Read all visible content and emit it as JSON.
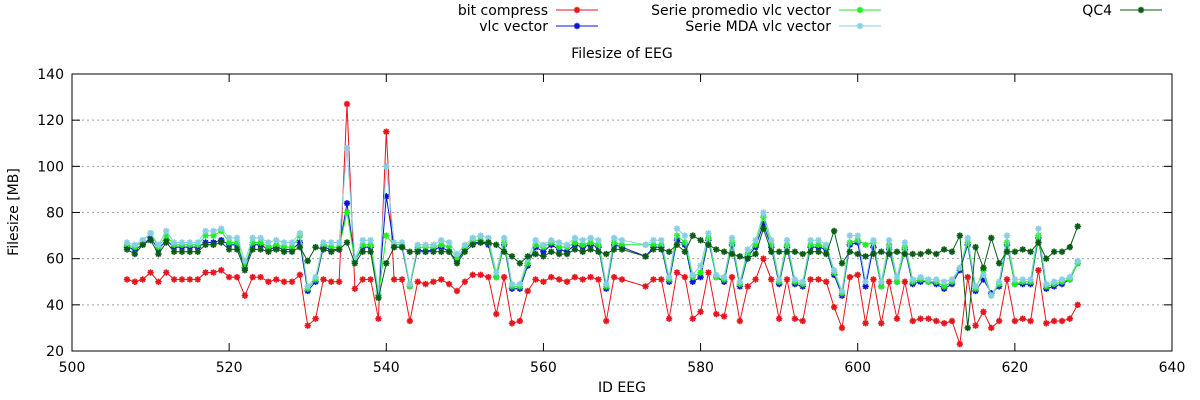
{
  "chart_data": {
    "type": "line",
    "title": "Filesize of EEG",
    "xlabel": "ID EEG",
    "ylabel": "Filesize [MB]",
    "xlim": [
      500,
      640
    ],
    "ylim": [
      20,
      140
    ],
    "xticks": [
      500,
      520,
      540,
      560,
      580,
      600,
      620,
      640
    ],
    "yticks": [
      20,
      40,
      60,
      80,
      100,
      120,
      140
    ],
    "grid": "horizontal dotted",
    "legend_placement": "top",
    "x": [
      507,
      508,
      509,
      510,
      511,
      512,
      513,
      514,
      515,
      516,
      517,
      518,
      519,
      520,
      521,
      522,
      523,
      524,
      525,
      526,
      527,
      528,
      529,
      530,
      531,
      532,
      533,
      534,
      535,
      536,
      537,
      538,
      539,
      540,
      541,
      542,
      543,
      544,
      545,
      546,
      547,
      548,
      549,
      550,
      551,
      552,
      553,
      554,
      555,
      556,
      557,
      558,
      559,
      560,
      561,
      562,
      563,
      564,
      565,
      566,
      567,
      568,
      569,
      570,
      573,
      574,
      575,
      576,
      577,
      578,
      579,
      580,
      581,
      582,
      583,
      584,
      585,
      586,
      587,
      588,
      589,
      590,
      591,
      592,
      593,
      594,
      595,
      596,
      597,
      598,
      599,
      600,
      601,
      602,
      603,
      604,
      605,
      606,
      607,
      608,
      609,
      610,
      611,
      612,
      613,
      614,
      615,
      616,
      617,
      618,
      619,
      620,
      621,
      622,
      623,
      624,
      625,
      626,
      627,
      628
    ],
    "series": [
      {
        "name": "bit compress",
        "color": "#e8141c",
        "values": [
          51,
          50,
          51,
          54,
          50,
          54,
          51,
          51,
          51,
          51,
          54,
          54,
          55,
          52,
          52,
          44,
          52,
          52,
          50,
          51,
          50,
          50,
          53,
          31,
          34,
          51,
          50,
          50,
          127,
          47,
          51,
          51,
          34,
          115,
          51,
          51,
          33,
          50,
          49,
          50,
          51,
          49,
          46,
          50,
          53,
          53,
          52,
          36,
          52,
          32,
          33,
          46,
          51,
          50,
          52,
          51,
          50,
          52,
          51,
          52,
          51,
          33,
          52,
          51,
          48,
          51,
          51,
          34,
          54,
          52,
          34,
          37,
          54,
          36,
          35,
          52,
          33,
          48,
          51,
          60,
          51,
          34,
          51,
          34,
          33,
          51,
          51,
          50,
          39,
          30,
          52,
          53,
          32,
          51,
          32,
          50,
          34,
          50,
          33,
          34,
          34,
          33,
          32,
          33,
          23,
          52,
          31,
          37,
          30,
          33,
          51,
          33,
          34,
          33,
          55,
          32,
          33,
          33,
          34,
          40
        ]
      },
      {
        "name": "vlc vector",
        "color": "#0a14d8",
        "values": [
          65,
          64,
          66,
          69,
          64,
          68,
          65,
          65,
          65,
          65,
          67,
          67,
          68,
          66,
          66,
          56,
          66,
          66,
          64,
          65,
          64,
          64,
          67,
          46,
          50,
          65,
          64,
          64,
          84,
          59,
          65,
          65,
          44,
          87,
          65,
          65,
          48,
          64,
          63,
          64,
          65,
          63,
          59,
          64,
          67,
          67,
          66,
          52,
          66,
          47,
          47,
          57,
          65,
          63,
          66,
          64,
          63,
          66,
          65,
          66,
          65,
          47,
          66,
          65,
          61,
          65,
          65,
          50,
          68,
          66,
          50,
          52,
          68,
          52,
          50,
          66,
          48,
          61,
          65,
          75,
          65,
          49,
          65,
          49,
          48,
          65,
          65,
          64,
          53,
          44,
          66,
          67,
          48,
          65,
          48,
          64,
          50,
          64,
          49,
          50,
          50,
          49,
          47,
          49,
          55,
          66,
          46,
          51,
          45,
          48,
          66,
          49,
          49,
          49,
          69,
          47,
          48,
          49,
          51,
          58
        ]
      },
      {
        "name": "Serie promedio vlc vector",
        "color": "#1ef01e",
        "values": [
          66,
          65,
          68,
          71,
          65,
          70,
          66,
          66,
          66,
          66,
          70,
          70,
          72,
          67,
          67,
          57,
          67,
          67,
          65,
          66,
          65,
          65,
          70,
          47,
          51,
          66,
          65,
          65,
          80,
          59,
          66,
          66,
          44,
          70,
          66,
          66,
          48,
          65,
          65,
          65,
          66,
          65,
          60,
          65,
          68,
          68,
          67,
          52,
          67,
          48,
          48,
          58,
          66,
          65,
          67,
          65,
          65,
          67,
          66,
          67,
          66,
          48,
          67,
          66,
          66,
          66,
          66,
          51,
          70,
          67,
          52,
          54,
          69,
          52,
          51,
          67,
          49,
          62,
          66,
          78,
          66,
          50,
          66,
          50,
          49,
          66,
          66,
          65,
          54,
          45,
          67,
          68,
          66,
          67,
          48,
          66,
          50,
          65,
          50,
          51,
          50,
          50,
          48,
          50,
          56,
          67,
          47,
          55,
          44,
          49,
          67,
          49,
          50,
          50,
          70,
          48,
          49,
          50,
          51,
          58
        ]
      },
      {
        "name": "Serie MDA vlc vector",
        "color": "#87cee6",
        "values": [
          67,
          66,
          68,
          71,
          66,
          72,
          67,
          67,
          67,
          67,
          72,
          72,
          73,
          69,
          69,
          59,
          69,
          69,
          67,
          68,
          67,
          67,
          71,
          48,
          52,
          67,
          67,
          67,
          108,
          60,
          68,
          68,
          46,
          100,
          67,
          67,
          49,
          66,
          66,
          66,
          68,
          67,
          62,
          66,
          69,
          70,
          69,
          54,
          69,
          49,
          49,
          60,
          68,
          66,
          68,
          67,
          66,
          69,
          68,
          69,
          68,
          49,
          69,
          68,
          66,
          68,
          68,
          52,
          73,
          70,
          53,
          57,
          71,
          53,
          52,
          69,
          50,
          64,
          68,
          80,
          68,
          51,
          68,
          51,
          50,
          68,
          68,
          66,
          55,
          46,
          70,
          70,
          50,
          68,
          50,
          68,
          52,
          67,
          51,
          52,
          51,
          51,
          50,
          51,
          56,
          69,
          48,
          53,
          44,
          50,
          70,
          51,
          51,
          51,
          73,
          49,
          50,
          51,
          52,
          59
        ]
      },
      {
        "name": "QC4",
        "color": "#0a5c14",
        "values": [
          64,
          62,
          66,
          68,
          62,
          67,
          63,
          63,
          63,
          63,
          66,
          66,
          67,
          64,
          64,
          55,
          64,
          64,
          63,
          64,
          63,
          63,
          65,
          59,
          65,
          64,
          63,
          64,
          67,
          58,
          63,
          63,
          43,
          58,
          65,
          65,
          63,
          63,
          63,
          63,
          63,
          63,
          58,
          63,
          66,
          67,
          67,
          66,
          63,
          61,
          58,
          61,
          62,
          61,
          63,
          62,
          62,
          64,
          63,
          64,
          63,
          62,
          64,
          64,
          61,
          64,
          64,
          63,
          66,
          63,
          70,
          68,
          66,
          64,
          63,
          62,
          61,
          60,
          62,
          73,
          63,
          63,
          63,
          63,
          62,
          63,
          63,
          62,
          72,
          58,
          63,
          62,
          61,
          62,
          63,
          62,
          63,
          62,
          62,
          62,
          63,
          62,
          64,
          63,
          70,
          30,
          65,
          56,
          69,
          58,
          63,
          63,
          64,
          63,
          67,
          60,
          63,
          63,
          65,
          74
        ]
      }
    ]
  }
}
